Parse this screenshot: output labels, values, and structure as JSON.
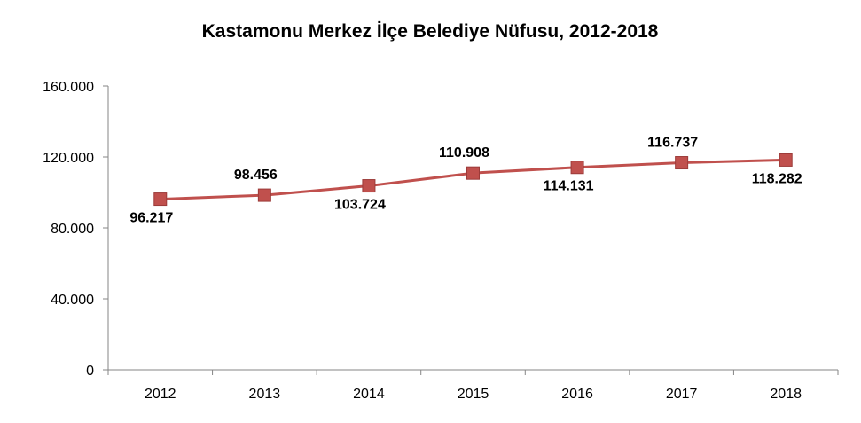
{
  "chart_data": {
    "type": "line",
    "title": "Kastamonu Merkez İlçe Belediye Nüfusu, 2012-2018",
    "xlabel": "",
    "ylabel": "",
    "categories": [
      "2012",
      "2013",
      "2014",
      "2015",
      "2016",
      "2017",
      "2018"
    ],
    "series": [
      {
        "values": [
          96217,
          98456,
          103724,
          110908,
          114131,
          116737,
          118282
        ],
        "data_labels": [
          "96.217",
          "98.456",
          "103.724",
          "110.908",
          "114.131",
          "116.737",
          "118.282"
        ],
        "label_side": [
          "below",
          "above",
          "below",
          "above",
          "below",
          "above",
          "below"
        ],
        "color": "#C0504D",
        "marker": "square"
      }
    ],
    "ylim": [
      0,
      160000
    ],
    "yticks": [
      0,
      40000,
      80000,
      120000,
      160000
    ],
    "ytick_labels": [
      "0",
      "40.000",
      "80.000",
      "120.000",
      "160.000"
    ],
    "grid": false,
    "legend": "none",
    "axis_color": "#868686"
  }
}
